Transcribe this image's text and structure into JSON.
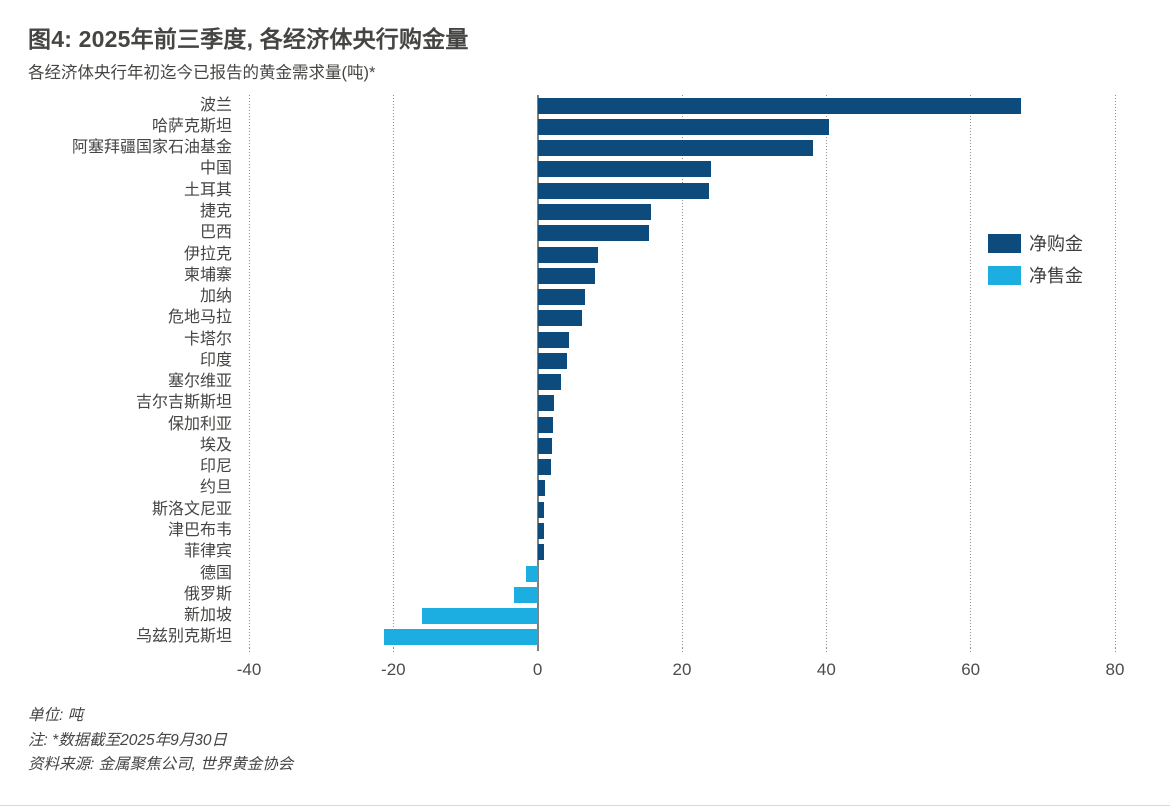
{
  "header": {
    "title": "图4: 2025年前三季度, 各经济体央行购金量",
    "subtitle": "各经济体央行年初迄今已报告的黄金需求量(吨)*"
  },
  "chart_data": {
    "type": "bar",
    "orientation": "horizontal",
    "title": "图4: 2025年前三季度, 各经济体央行购金量",
    "subtitle": "各经济体央行年初迄今已报告的黄金需求量(吨)*",
    "unit": "吨",
    "categories": [
      "波兰",
      "哈萨克斯坦",
      "阿塞拜疆国家石油基金",
      "中国",
      "土耳其",
      "捷克",
      "巴西",
      "伊拉克",
      "柬埔寨",
      "加纳",
      "危地马拉",
      "卡塔尔",
      "印度",
      "塞尔维亚",
      "吉尔吉斯斯坦",
      "保加利亚",
      "埃及",
      "印尼",
      "约旦",
      "斯洛文尼亚",
      "津巴布韦",
      "菲律宾",
      "德国",
      "俄罗斯",
      "新加坡",
      "乌兹别克斯坦"
    ],
    "values": [
      67,
      40.4,
      38.2,
      24,
      23.7,
      15.7,
      15.4,
      8.3,
      8,
      6.6,
      6.2,
      4.4,
      4.1,
      3.3,
      2.2,
      2.1,
      2,
      1.9,
      1,
      0.9,
      0.9,
      0.9,
      -1.6,
      -3.3,
      -16,
      -21.3
    ],
    "xlim": [
      -40,
      80
    ],
    "x_ticks": [
      -40,
      -20,
      0,
      20,
      40,
      60,
      80
    ],
    "xlabel": "",
    "ylabel": "",
    "grid": "vertical-dotted",
    "legend_position": "right-inside",
    "legend": [
      "净购金",
      "净售金"
    ],
    "colors": {
      "net_purchase": "#0d4b7c",
      "net_sale": "#1caee0"
    }
  },
  "footer": {
    "lines": [
      "单位: 吨",
      "注: *数据截至2025年9月30日",
      "资料来源: 金属聚焦公司, 世界黄金协会"
    ]
  }
}
